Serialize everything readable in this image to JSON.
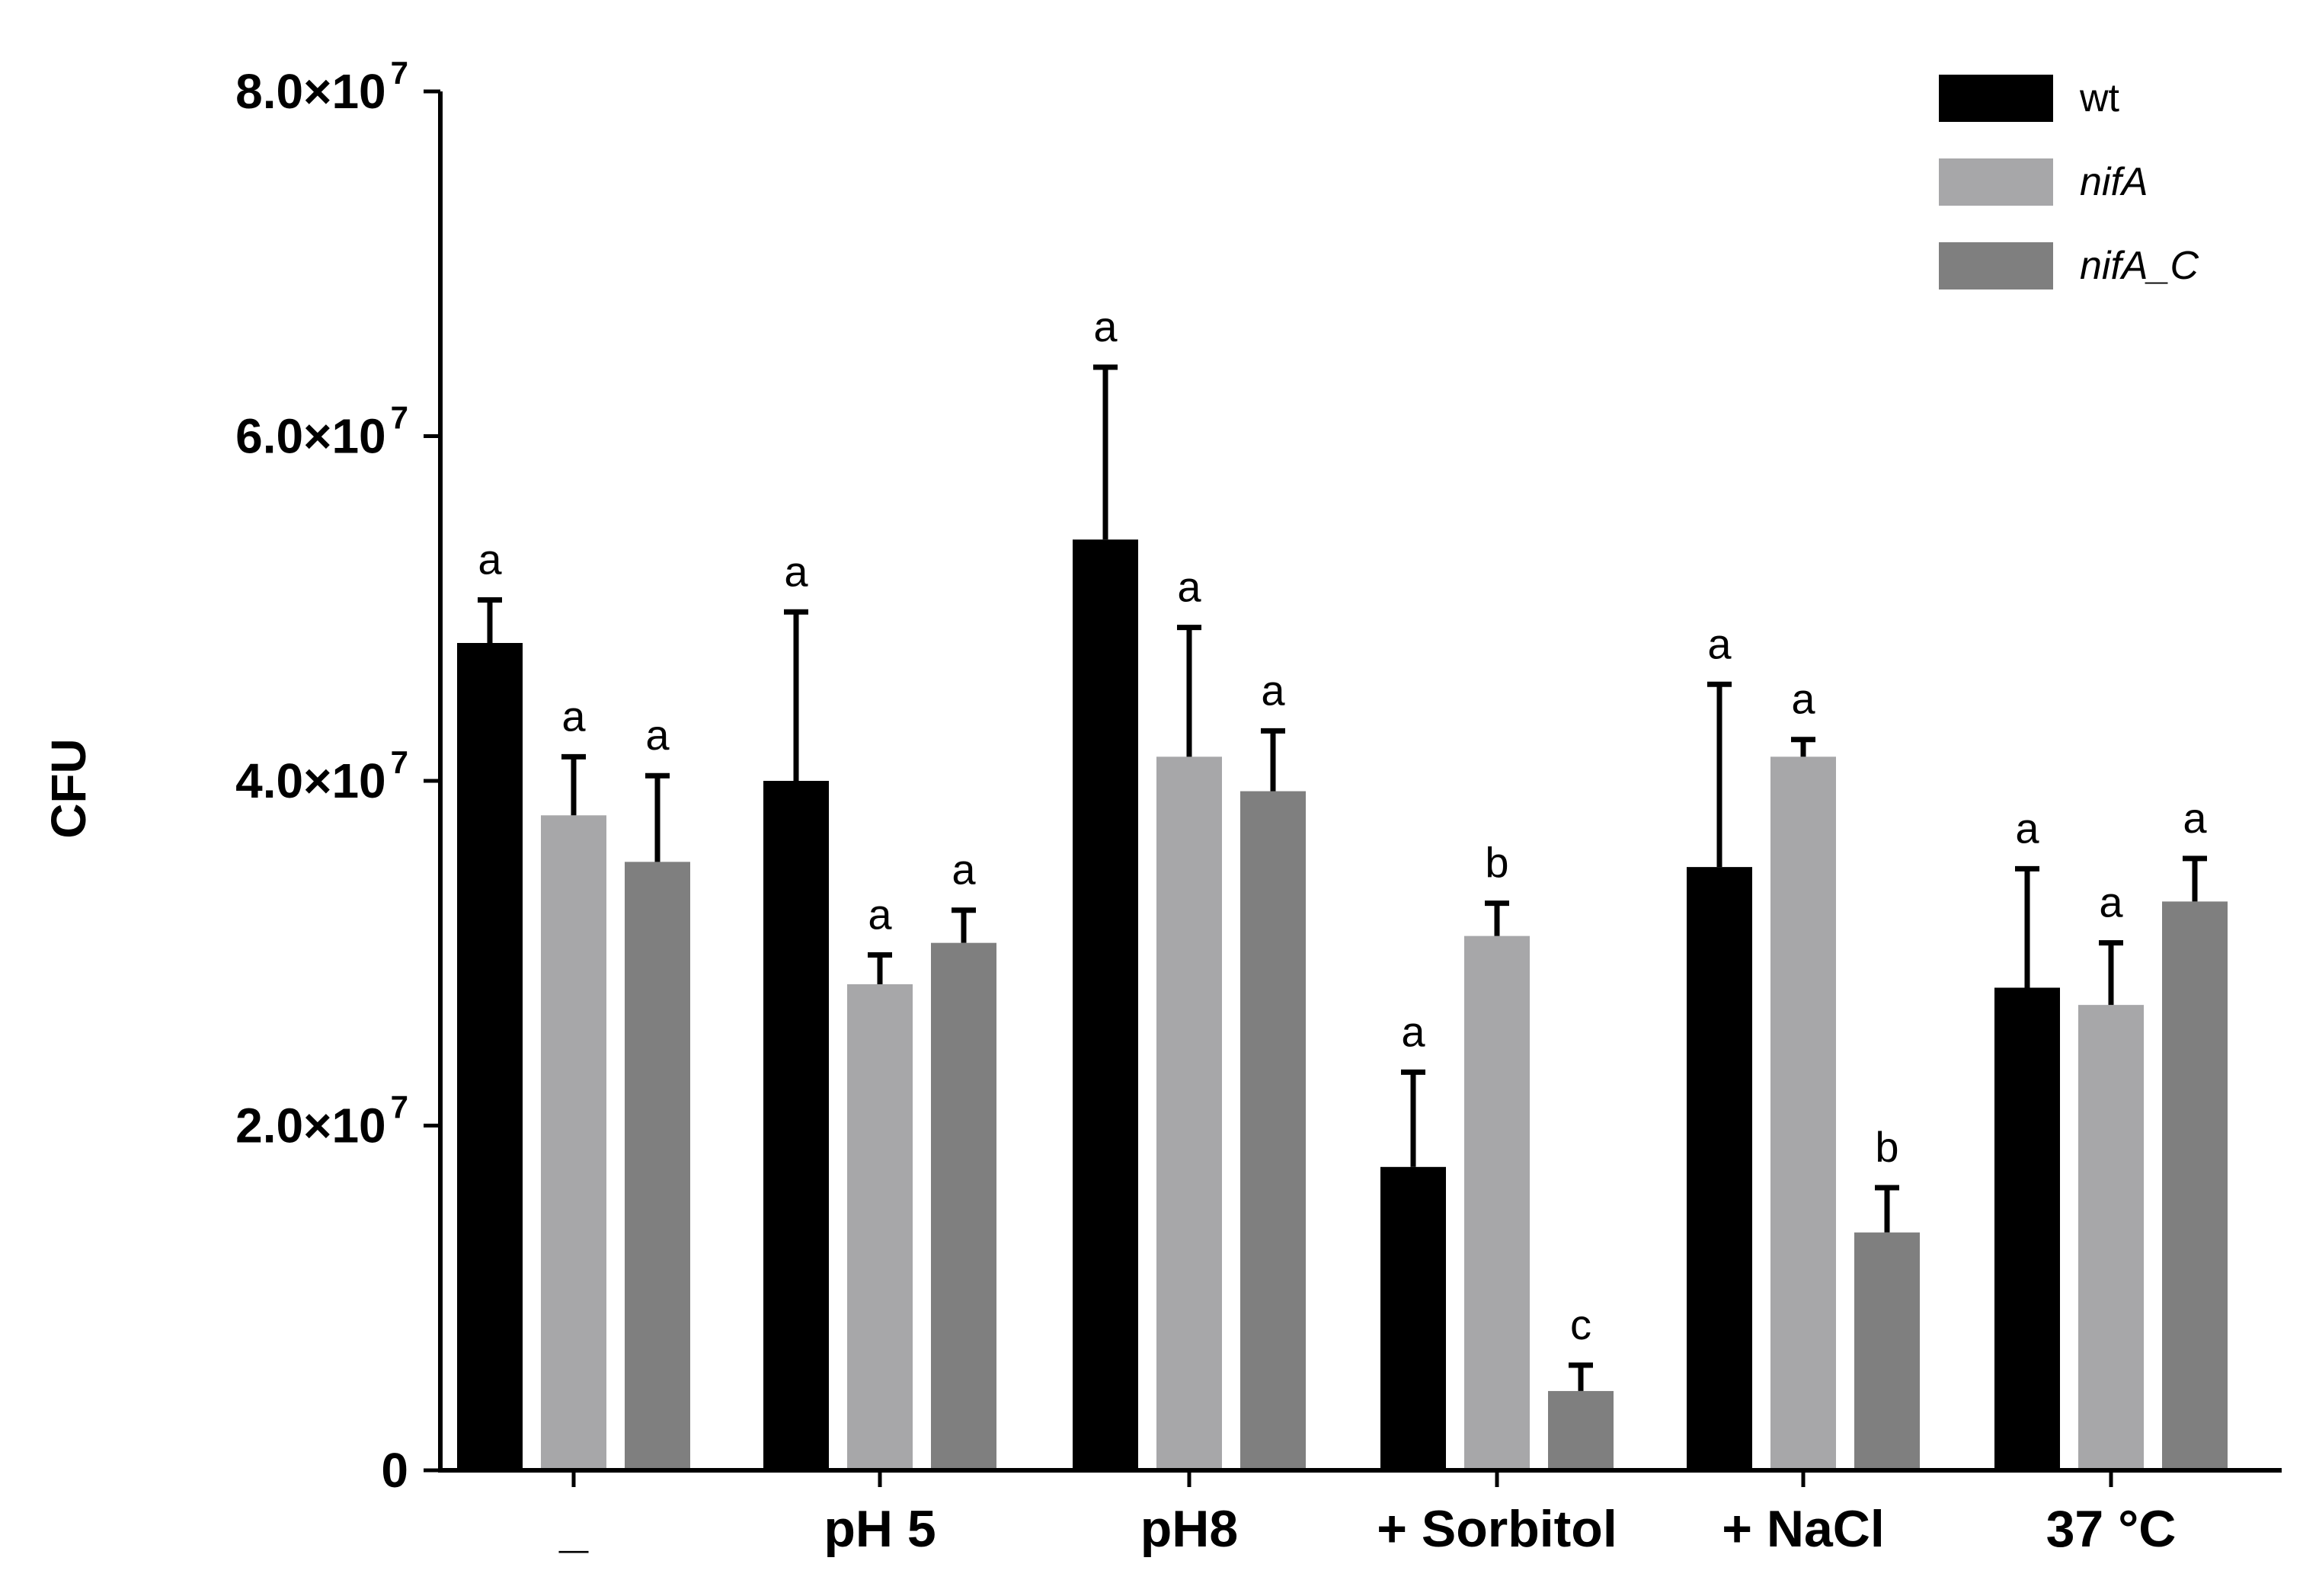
{
  "chart_data": {
    "type": "bar",
    "title": "",
    "xlabel": "",
    "ylabel": "CFU",
    "ylim": [
      0,
      80000000
    ],
    "grid": false,
    "legend_position": "top-right",
    "yticks": [
      {
        "value": 0,
        "mantissa": "0",
        "exponent": ""
      },
      {
        "value": 20000000,
        "mantissa": "2.0×10",
        "exponent": "7"
      },
      {
        "value": 40000000,
        "mantissa": "4.0×10",
        "exponent": "7"
      },
      {
        "value": 60000000,
        "mantissa": "6.0×10",
        "exponent": "7"
      },
      {
        "value": 80000000,
        "mantissa": "8.0×10",
        "exponent": "7"
      }
    ],
    "categories": [
      "_",
      "pH 5",
      "pH8",
      "+ Sorbitol",
      "+ NaCl",
      "37 °C"
    ],
    "series": [
      {
        "name": "wt",
        "italic": false,
        "color": "#000000",
        "values": [
          48000000,
          40000000,
          54000000,
          17600000,
          35000000,
          28000000
        ],
        "errors": [
          2500000,
          9800000,
          10000000,
          5500000,
          10600000,
          6900000
        ],
        "labels": [
          "a",
          "a",
          "a",
          "a",
          "a",
          "a"
        ]
      },
      {
        "name": "nifA",
        "italic": true,
        "color": "#a7a7a9",
        "values": [
          38000000,
          28200000,
          41400000,
          31000000,
          41400000,
          27000000
        ],
        "errors": [
          3400000,
          1700000,
          7500000,
          1900000,
          1000000,
          3600000
        ],
        "labels": [
          "a",
          "a",
          "a",
          "b",
          "a",
          "a"
        ]
      },
      {
        "name": "nifA_C",
        "italic": true,
        "color": "#7f7f7f",
        "values": [
          35300000,
          30600000,
          39400000,
          4600000,
          13800000,
          33000000
        ],
        "errors": [
          5000000,
          1900000,
          3500000,
          1500000,
          2600000,
          2500000
        ],
        "labels": [
          "a",
          "a",
          "a",
          "c",
          "b",
          "a"
        ]
      }
    ]
  }
}
